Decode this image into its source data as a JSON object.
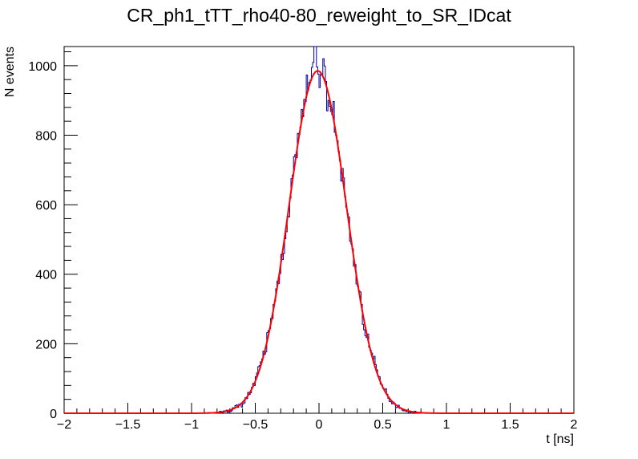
{
  "chart_data": {
    "type": "histogram",
    "title": "CR_ph1_tTT_rho40-80_reweight_to_SR_IDcat",
    "xlabel": "t [ns]",
    "ylabel": "N events",
    "xlim": [
      -2,
      2
    ],
    "ylim": [
      0,
      1055
    ],
    "x_ticks": [
      -2,
      -1.5,
      -1,
      -0.5,
      0,
      0.5,
      1,
      1.5,
      2
    ],
    "x_tick_labels": [
      "−2",
      "−1.5",
      "−1",
      "−0.5",
      "0",
      "0.5",
      "1",
      "1.5",
      "2"
    ],
    "y_ticks": [
      0,
      200,
      400,
      600,
      800,
      1000
    ],
    "y_tick_labels": [
      "0",
      "200",
      "400",
      "600",
      "800",
      "1000"
    ],
    "grid": false,
    "legend": "none",
    "series": [
      {
        "kind": "histogram",
        "color": "#000099",
        "bin_range": [
          -2,
          2
        ],
        "n_bins": 400,
        "fluctuation_seed": 7
      },
      {
        "kind": "gaussian-fit",
        "color": "#ff0000",
        "amplitude": 985,
        "mean": -0.01,
        "sigma": 0.225
      }
    ]
  }
}
